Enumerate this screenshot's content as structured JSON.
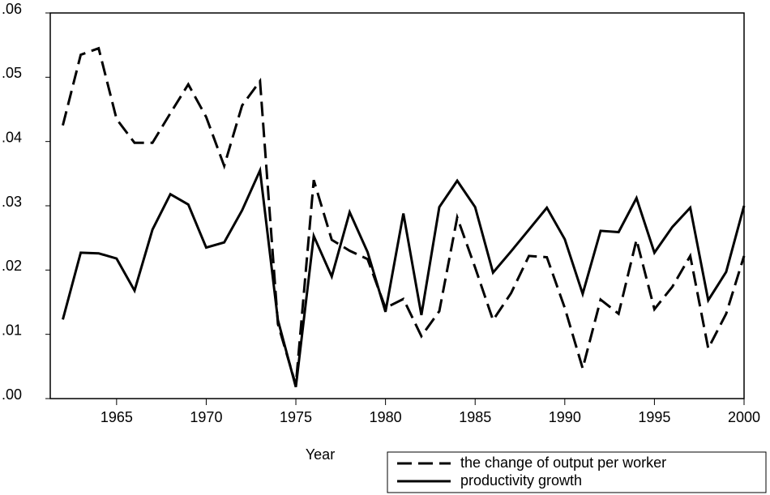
{
  "chart_data": {
    "type": "line",
    "x_label": "Year",
    "x": [
      1962,
      1963,
      1964,
      1965,
      1966,
      1967,
      1968,
      1969,
      1970,
      1971,
      1972,
      1973,
      1974,
      1975,
      1976,
      1977,
      1978,
      1979,
      1980,
      1981,
      1982,
      1983,
      1984,
      1985,
      1986,
      1987,
      1988,
      1989,
      1990,
      1991,
      1992,
      1993,
      1994,
      1995,
      1996,
      1997,
      1998,
      1999,
      2000
    ],
    "series": [
      {
        "name": "the change of output per worker",
        "color": "#000000",
        "dash": true,
        "values": [
          0.0425,
          0.0535,
          0.0545,
          0.0435,
          0.0398,
          0.0398,
          0.0444,
          0.0489,
          0.0438,
          0.0362,
          0.0456,
          0.0494,
          0.0116,
          0.0021,
          0.034,
          0.0247,
          0.023,
          0.0217,
          0.0141,
          0.0155,
          0.0097,
          0.0136,
          0.0282,
          0.0204,
          0.0122,
          0.0164,
          0.0222,
          0.022,
          0.0141,
          0.0047,
          0.0154,
          0.0132,
          0.0247,
          0.0139,
          0.0174,
          0.0222,
          0.0078,
          0.0132,
          0.0222
        ]
      },
      {
        "name": "productivity growth",
        "color": "#000000",
        "dash": false,
        "values": [
          0.0123,
          0.0227,
          0.0226,
          0.0218,
          0.0168,
          0.0263,
          0.0318,
          0.0302,
          0.0235,
          0.0243,
          0.0293,
          0.0355,
          0.0122,
          0.0018,
          0.0253,
          0.019,
          0.029,
          0.0228,
          0.0135,
          0.0288,
          0.013,
          0.0298,
          0.0339,
          0.0298,
          0.0196,
          0.0229,
          0.0263,
          0.0297,
          0.0248,
          0.0163,
          0.0261,
          0.0259,
          0.0312,
          0.0227,
          0.0267,
          0.0297,
          0.0153,
          0.0197,
          0.03
        ]
      }
    ],
    "xlim": [
      1961.3,
      2000
    ],
    "xticks": [
      1965,
      1970,
      1975,
      1980,
      1985,
      1990,
      1995,
      2000
    ],
    "ylim": [
      0,
      0.06
    ],
    "yticks": [
      {
        "value": 0,
        "label": ".00"
      },
      {
        "value": 0.01,
        "label": ".01"
      },
      {
        "value": 0.02,
        "label": ".02"
      },
      {
        "value": 0.03,
        "label": ".03"
      },
      {
        "value": 0.04,
        "label": ".04"
      },
      {
        "value": 0.05,
        "label": ".05"
      },
      {
        "value": 0.06,
        "label": ".06"
      }
    ],
    "legend": "bottom-right"
  }
}
